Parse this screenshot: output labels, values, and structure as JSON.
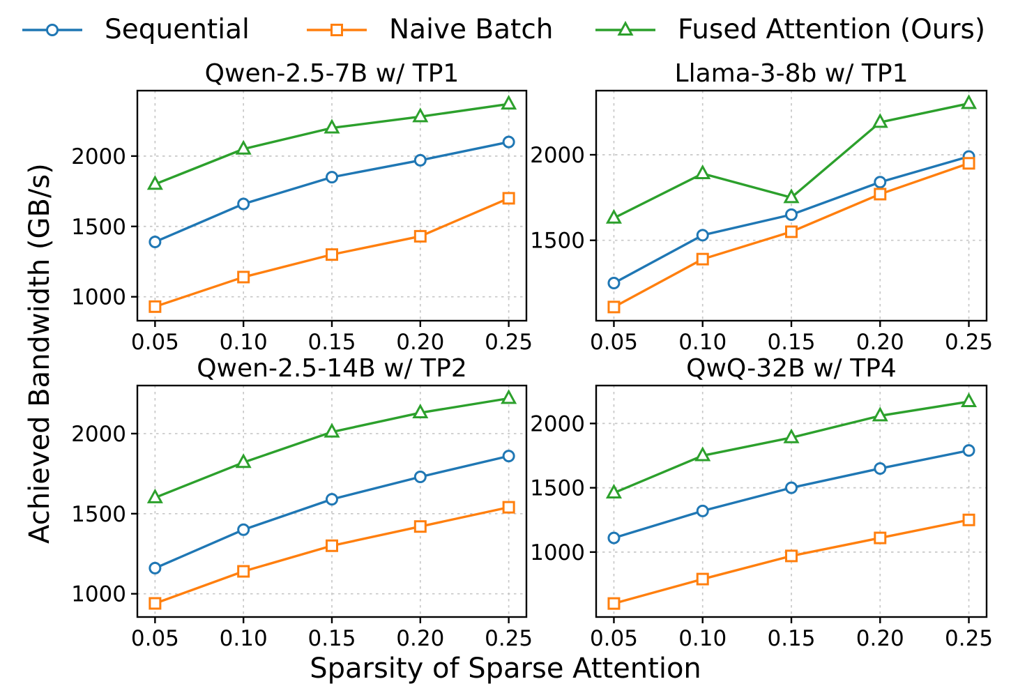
{
  "legend": {
    "items": [
      {
        "label": "Sequential",
        "marker": "circle",
        "color": "#1f77b4"
      },
      {
        "label": "Naive Batch",
        "marker": "square",
        "color": "#ff7f0e"
      },
      {
        "label": "Fused Attention (Ours)",
        "marker": "triangle",
        "color": "#2ca02c"
      }
    ]
  },
  "labels": {
    "x": "Sparsity of Sparse Attention",
    "y": "Achieved Bandwidth (GB/s)"
  },
  "style": {
    "grid_color": "#c7c7c7",
    "axis_color": "#000000",
    "background": "#ffffff"
  },
  "chart_data": [
    {
      "type": "line",
      "title": "Qwen-2.5-7B w/ TP1",
      "x": [
        0.05,
        0.1,
        0.15,
        0.2,
        0.25
      ],
      "x_tick_labels": [
        "0.05",
        "0.10",
        "0.15",
        "0.20",
        "0.25"
      ],
      "xlim": [
        0.04,
        0.26
      ],
      "y_ticks": [
        1000,
        1500,
        2000
      ],
      "ylim": [
        830,
        2465
      ],
      "grid": true,
      "series": [
        {
          "name": "Sequential",
          "values": [
            1390,
            1660,
            1850,
            1970,
            2100
          ]
        },
        {
          "name": "Naive Batch",
          "values": [
            930,
            1140,
            1300,
            1430,
            1700
          ]
        },
        {
          "name": "Fused Attention (Ours)",
          "values": [
            1800,
            2050,
            2200,
            2280,
            2370
          ]
        }
      ]
    },
    {
      "type": "line",
      "title": "Llama-3-8b w/ TP1",
      "x": [
        0.05,
        0.1,
        0.15,
        0.2,
        0.25
      ],
      "x_tick_labels": [
        "0.05",
        "0.10",
        "0.15",
        "0.20",
        "0.25"
      ],
      "xlim": [
        0.04,
        0.26
      ],
      "y_ticks": [
        1500,
        2000
      ],
      "ylim": [
        1030,
        2375
      ],
      "grid": true,
      "series": [
        {
          "name": "Sequential",
          "values": [
            1250,
            1530,
            1650,
            1840,
            1990
          ]
        },
        {
          "name": "Naive Batch",
          "values": [
            1110,
            1390,
            1550,
            1770,
            1950
          ]
        },
        {
          "name": "Fused Attention (Ours)",
          "values": [
            1630,
            1890,
            1750,
            2190,
            2300
          ]
        }
      ]
    },
    {
      "type": "line",
      "title": "Qwen-2.5-14B w/ TP2",
      "x": [
        0.05,
        0.1,
        0.15,
        0.2,
        0.25
      ],
      "x_tick_labels": [
        "0.05",
        "0.10",
        "0.15",
        "0.20",
        "0.25"
      ],
      "xlim": [
        0.04,
        0.26
      ],
      "y_ticks": [
        1000,
        1500,
        2000
      ],
      "ylim": [
        855,
        2300
      ],
      "grid": true,
      "series": [
        {
          "name": "Sequential",
          "values": [
            1160,
            1400,
            1590,
            1730,
            1860
          ]
        },
        {
          "name": "Naive Batch",
          "values": [
            940,
            1140,
            1300,
            1420,
            1540
          ]
        },
        {
          "name": "Fused Attention (Ours)",
          "values": [
            1600,
            1820,
            2010,
            2130,
            2220
          ]
        }
      ]
    },
    {
      "type": "line",
      "title": "QwQ-32B w/ TP4",
      "x": [
        0.05,
        0.1,
        0.15,
        0.2,
        0.25
      ],
      "x_tick_labels": [
        "0.05",
        "0.10",
        "0.15",
        "0.20",
        "0.25"
      ],
      "xlim": [
        0.04,
        0.26
      ],
      "y_ticks": [
        1000,
        1500,
        2000
      ],
      "ylim": [
        495,
        2295
      ],
      "grid": true,
      "series": [
        {
          "name": "Sequential",
          "values": [
            1110,
            1320,
            1500,
            1650,
            1790
          ]
        },
        {
          "name": "Naive Batch",
          "values": [
            600,
            790,
            970,
            1110,
            1250
          ]
        },
        {
          "name": "Fused Attention (Ours)",
          "values": [
            1460,
            1750,
            1890,
            2060,
            2170
          ]
        }
      ]
    }
  ]
}
